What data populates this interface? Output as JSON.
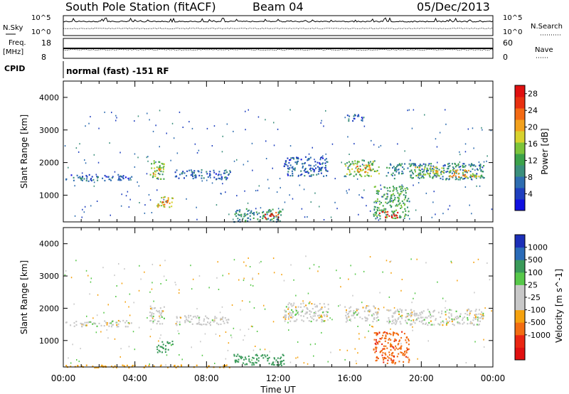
{
  "header": {
    "title": "South Pole Station (fitACF)",
    "beam": "Beam 04",
    "date": "05/Dec/2013"
  },
  "status_panels": {
    "nsky_label": "N.Sky",
    "nsearch_label": "N.Search",
    "nsky_ticks": [
      "10^5",
      "10^0"
    ],
    "nsearch_ticks": [
      "10^5",
      "10^0"
    ],
    "freq_label": "Freq.",
    "freq_unit": "[MHz]",
    "freq_ticks": [
      "18",
      "8"
    ],
    "nave_ticks": [
      "60",
      "0"
    ],
    "nave_label": "Nave",
    "cpid_label": "CPID",
    "cpid_text": "normal (fast) -151 RF"
  },
  "chart_data": [
    {
      "type": "heatmap",
      "name": "power",
      "xlabel": "",
      "ylabel": "Slant Range [km]",
      "xlim": [
        0,
        24
      ],
      "ylim": [
        180,
        4500
      ],
      "yticks": [
        1000,
        2000,
        3000,
        4000
      ],
      "colorbar": {
        "label": "Power [dB]",
        "range": [
          0,
          30
        ],
        "ticks": [
          4,
          8,
          12,
          16,
          20,
          24,
          28
        ],
        "colors": [
          "#1010e0",
          "#1f3fbf",
          "#2e6db0",
          "#3b8f7c",
          "#3ca24a",
          "#7cc43a",
          "#d8d22e",
          "#f2a11d",
          "#f36a14",
          "#e83010",
          "#e01010"
        ]
      },
      "blobs": [
        {
          "t0": 0.1,
          "t1": 3.8,
          "r0": 1450,
          "r1": 1650,
          "v": 6
        },
        {
          "t0": 4.8,
          "t1": 5.6,
          "r0": 1500,
          "r1": 2100,
          "v": 14
        },
        {
          "t0": 5.0,
          "t1": 5.4,
          "r0": 1650,
          "r1": 1900,
          "v": 20
        },
        {
          "t0": 5.2,
          "t1": 6.1,
          "r0": 650,
          "r1": 1000,
          "v": 18
        },
        {
          "t0": 5.5,
          "t1": 5.9,
          "r0": 720,
          "r1": 880,
          "v": 24
        },
        {
          "t0": 6.2,
          "t1": 9.3,
          "r0": 1500,
          "r1": 1800,
          "v": 6
        },
        {
          "t0": 9.5,
          "t1": 12.3,
          "r0": 200,
          "r1": 600,
          "v": 10
        },
        {
          "t0": 11.2,
          "t1": 12.0,
          "r0": 300,
          "r1": 500,
          "v": 27
        },
        {
          "t0": 12.3,
          "t1": 14.8,
          "r0": 1600,
          "r1": 2200,
          "v": 6
        },
        {
          "t0": 15.7,
          "t1": 17.6,
          "r0": 1600,
          "r1": 2100,
          "v": 14
        },
        {
          "t0": 16.3,
          "t1": 17.1,
          "r0": 1700,
          "r1": 1950,
          "v": 22
        },
        {
          "t0": 15.8,
          "t1": 16.8,
          "r0": 3300,
          "r1": 3500,
          "v": 6
        },
        {
          "t0": 17.3,
          "t1": 19.3,
          "r0": 300,
          "r1": 1300,
          "v": 12
        },
        {
          "t0": 17.6,
          "t1": 18.7,
          "r0": 330,
          "r1": 520,
          "v": 27
        },
        {
          "t0": 18.0,
          "t1": 23.5,
          "r0": 1500,
          "r1": 2000,
          "v": 9
        },
        {
          "t0": 19.6,
          "t1": 21.2,
          "r0": 1600,
          "r1": 1900,
          "v": 17
        },
        {
          "t0": 21.5,
          "t1": 23.2,
          "r0": 1550,
          "r1": 1800,
          "v": 19
        }
      ]
    },
    {
      "type": "heatmap",
      "name": "velocity",
      "xlabel": "Time UT",
      "ylabel": "Slant Range [km]",
      "xlim": [
        0,
        24
      ],
      "xticks": [
        "00:00",
        "04:00",
        "08:00",
        "12:00",
        "16:00",
        "20:00",
        "00:00"
      ],
      "ylim": [
        180,
        4500
      ],
      "yticks": [
        1000,
        2000,
        3000,
        4000
      ],
      "colorbar": {
        "label": "Velocity [m s^-1]",
        "ticks": [
          "1000",
          "500",
          "100",
          "25",
          "-25",
          "-100",
          "-500",
          "-1000"
        ],
        "colors": [
          "#1c2fb8",
          "#2a6bb8",
          "#3a9a5a",
          "#57c84a",
          "#c8c8c8",
          "#c8c8c8",
          "#f5a20f",
          "#f26d12",
          "#ea2612",
          "#e01010"
        ]
      },
      "blobs": [
        {
          "t0": 0.1,
          "t1": 3.8,
          "r0": 1450,
          "r1": 1650,
          "v": 0
        },
        {
          "t0": 4.8,
          "t1": 5.6,
          "r0": 1500,
          "r1": 2100,
          "v": 0
        },
        {
          "t0": 5.2,
          "t1": 6.1,
          "r0": 650,
          "r1": 1000,
          "v": 150
        },
        {
          "t0": 6.2,
          "t1": 9.3,
          "r0": 1500,
          "r1": 1800,
          "v": 0
        },
        {
          "t0": 9.5,
          "t1": 12.3,
          "r0": 250,
          "r1": 600,
          "v": 300
        },
        {
          "t0": 12.3,
          "t1": 14.8,
          "r0": 1600,
          "r1": 2200,
          "v": 0
        },
        {
          "t0": 15.7,
          "t1": 17.6,
          "r0": 1600,
          "r1": 2100,
          "v": 0
        },
        {
          "t0": 17.3,
          "t1": 19.3,
          "r0": 300,
          "r1": 1300,
          "v": -400
        },
        {
          "t0": 18.0,
          "t1": 23.5,
          "r0": 1500,
          "r1": 2000,
          "v": 0
        },
        {
          "t0": 0.1,
          "t1": 9.5,
          "r0": 180,
          "r1": 260,
          "v": -60
        }
      ]
    }
  ]
}
